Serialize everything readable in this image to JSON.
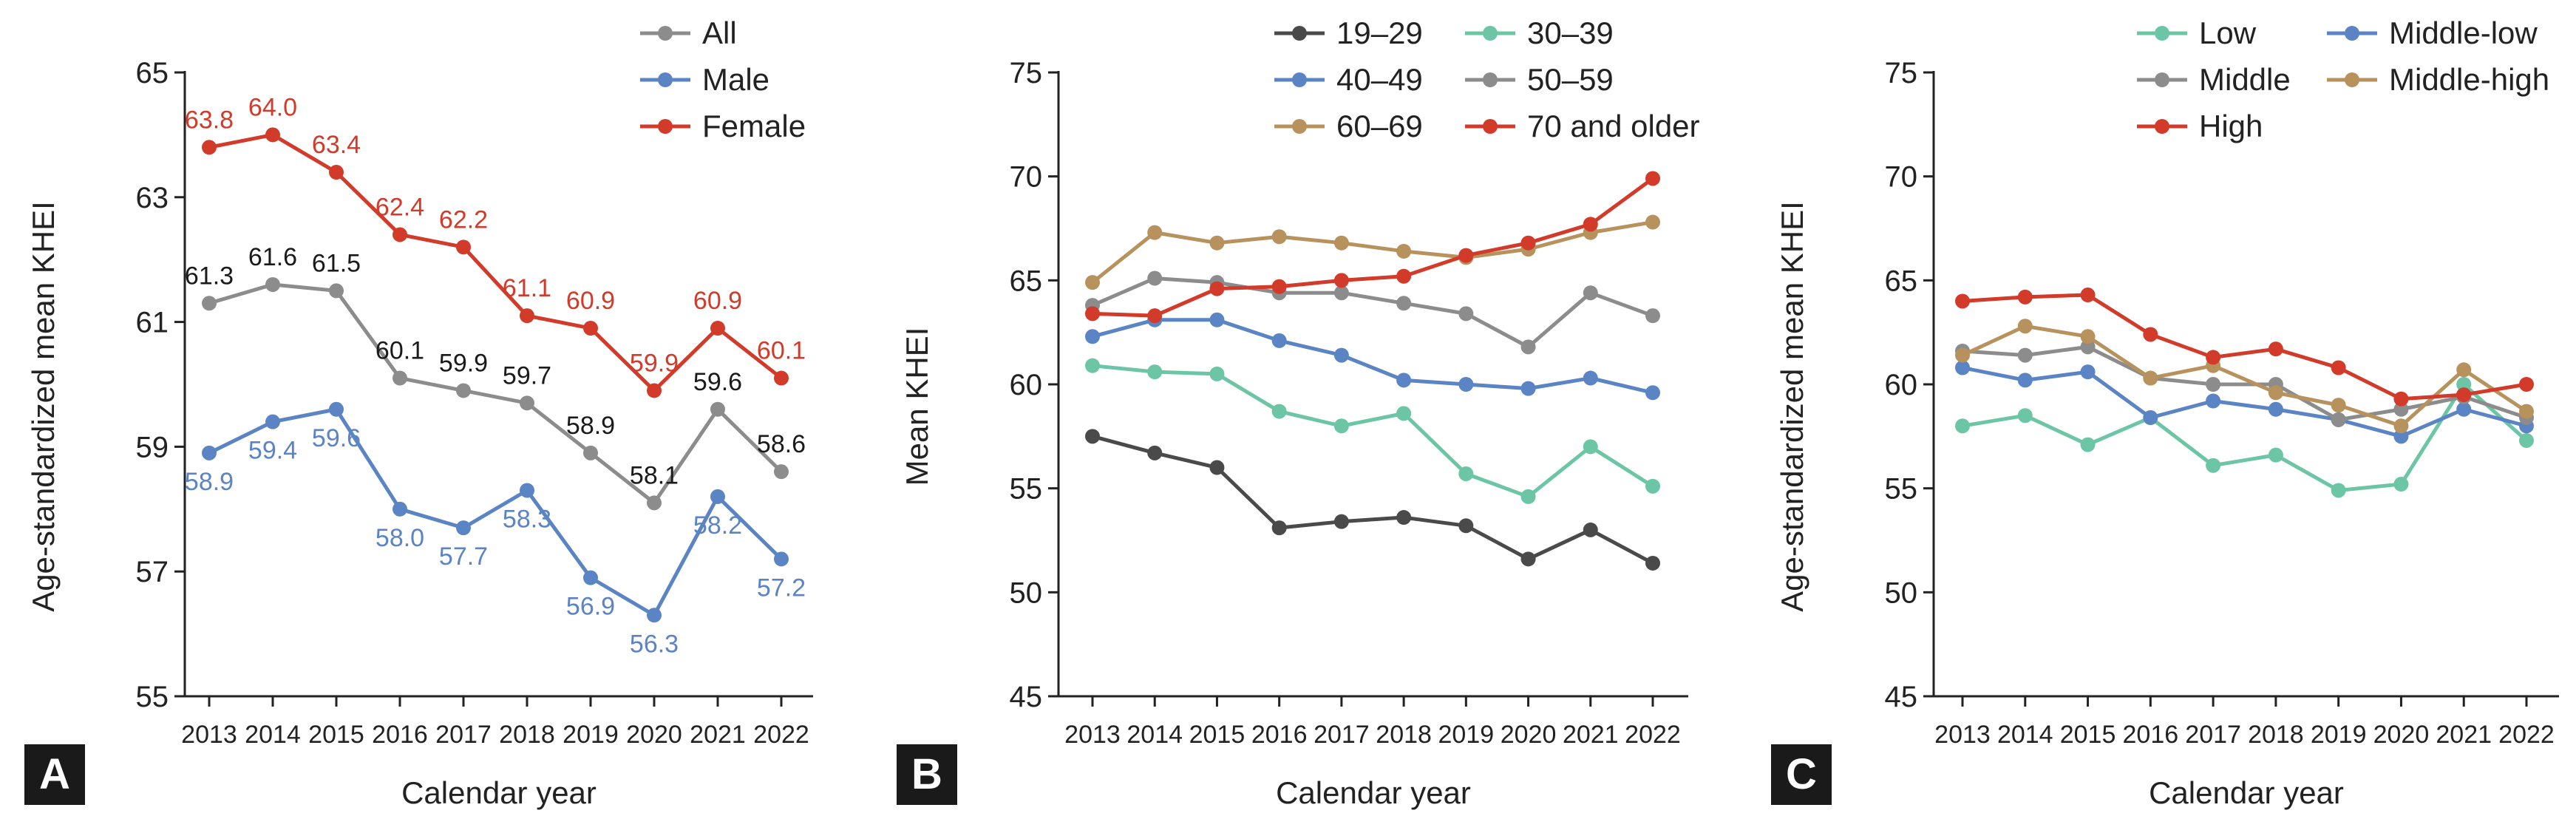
{
  "figure": {
    "panels": [
      "A",
      "B",
      "C"
    ]
  },
  "chart_data": [
    {
      "type": "line",
      "panel": "A",
      "title": "",
      "xlabel": "Calendar year",
      "ylabel": "Age-standardized mean KHEI",
      "x": [
        "2013",
        "2014",
        "2015",
        "2016",
        "2017",
        "2018",
        "2019",
        "2020",
        "2021",
        "2022"
      ],
      "ylim": [
        55,
        65
      ],
      "yticks": [
        "55",
        "57",
        "59",
        "61",
        "63",
        "65"
      ],
      "legend_position": "top-right",
      "series": [
        {
          "name": "All",
          "color": "#8c8c8c",
          "values": [
            61.3,
            61.6,
            61.5,
            60.1,
            59.9,
            59.7,
            58.9,
            58.1,
            59.6,
            58.6
          ],
          "labels": [
            "61.3",
            "61.6",
            "61.5",
            "60.1",
            "59.9",
            "59.7",
            "58.9",
            "58.1",
            "59.6",
            "58.6"
          ],
          "label_color": "#1a1a1a",
          "label_pos": "above"
        },
        {
          "name": "Male",
          "color": "#5b84c4",
          "values": [
            58.9,
            59.4,
            59.6,
            58.0,
            57.7,
            58.3,
            56.9,
            56.3,
            58.2,
            57.2
          ],
          "labels": [
            "58.9",
            "59.4",
            "59.6",
            "58.0",
            "57.7",
            "58.3",
            "56.9",
            "56.3",
            "58.2",
            "57.2"
          ],
          "label_color": "#5b84c4",
          "label_pos": "below"
        },
        {
          "name": "Female",
          "color": "#d23a2a",
          "values": [
            63.8,
            64.0,
            63.4,
            62.4,
            62.2,
            61.1,
            60.9,
            59.9,
            60.9,
            60.1
          ],
          "labels": [
            "63.8",
            "64.0",
            "63.4",
            "62.4",
            "62.2",
            "61.1",
            "60.9",
            "59.9",
            "60.9",
            "60.1"
          ],
          "label_color": "#d23a2a",
          "label_pos": "above"
        }
      ]
    },
    {
      "type": "line",
      "panel": "B",
      "title": "",
      "xlabel": "Calendar year",
      "ylabel": "Mean KHEI",
      "x": [
        "2013",
        "2014",
        "2015",
        "2016",
        "2017",
        "2018",
        "2019",
        "2020",
        "2021",
        "2022"
      ],
      "ylim": [
        45,
        75
      ],
      "yticks": [
        "45",
        "50",
        "55",
        "60",
        "65",
        "70",
        "75"
      ],
      "legend_position": "top-right",
      "series": [
        {
          "name": "19–29",
          "color": "#4a4a4a",
          "values": [
            57.5,
            56.7,
            56.0,
            53.1,
            53.4,
            53.6,
            53.2,
            51.6,
            53.0,
            51.4
          ]
        },
        {
          "name": "30–39",
          "color": "#6cc6a6",
          "values": [
            60.9,
            60.6,
            60.5,
            58.7,
            58.0,
            58.6,
            55.7,
            54.6,
            57.0,
            55.1
          ]
        },
        {
          "name": "40–49",
          "color": "#5b84c4",
          "values": [
            62.3,
            63.1,
            63.1,
            62.1,
            61.4,
            60.2,
            60.0,
            59.8,
            60.3,
            59.6
          ]
        },
        {
          "name": "50–59",
          "color": "#8c8c8c",
          "values": [
            63.8,
            65.1,
            64.9,
            64.4,
            64.4,
            63.9,
            63.4,
            61.8,
            64.4,
            63.3
          ]
        },
        {
          "name": "60–69",
          "color": "#b7925c",
          "values": [
            64.9,
            67.3,
            66.8,
            67.1,
            66.8,
            66.4,
            66.1,
            66.5,
            67.3,
            67.8
          ]
        },
        {
          "name": "70 and older",
          "color": "#d23a2a",
          "values": [
            63.4,
            63.3,
            64.6,
            64.7,
            65.0,
            65.2,
            66.2,
            66.8,
            67.7,
            69.9
          ]
        }
      ]
    },
    {
      "type": "line",
      "panel": "C",
      "title": "",
      "xlabel": "Calendar year",
      "ylabel": "Age-standardized mean KHEI",
      "x": [
        "2013",
        "2014",
        "2015",
        "2016",
        "2017",
        "2018",
        "2019",
        "2020",
        "2021",
        "2022"
      ],
      "ylim": [
        45,
        75
      ],
      "yticks": [
        "45",
        "50",
        "55",
        "60",
        "65",
        "70",
        "75"
      ],
      "legend_position": "top-right",
      "series": [
        {
          "name": "Low",
          "color": "#6cc6a6",
          "values": [
            58.0,
            58.5,
            57.1,
            58.4,
            56.1,
            56.6,
            54.9,
            55.2,
            60.0,
            57.3
          ]
        },
        {
          "name": "Middle-low",
          "color": "#5b84c4",
          "values": [
            60.8,
            60.2,
            60.6,
            58.4,
            59.2,
            58.8,
            58.3,
            57.5,
            58.8,
            58.0
          ]
        },
        {
          "name": "Middle",
          "color": "#8c8c8c",
          "values": [
            61.6,
            61.4,
            61.8,
            60.3,
            60.0,
            60.0,
            58.3,
            58.8,
            59.4,
            58.4
          ]
        },
        {
          "name": "Middle-high",
          "color": "#b7925c",
          "values": [
            61.4,
            62.8,
            62.3,
            60.3,
            60.9,
            59.6,
            59.0,
            58.0,
            60.7,
            58.7
          ]
        },
        {
          "name": "High",
          "color": "#d23a2a",
          "values": [
            64.0,
            64.2,
            64.3,
            62.4,
            61.3,
            61.7,
            60.8,
            59.3,
            59.5,
            60.0
          ]
        }
      ]
    }
  ]
}
